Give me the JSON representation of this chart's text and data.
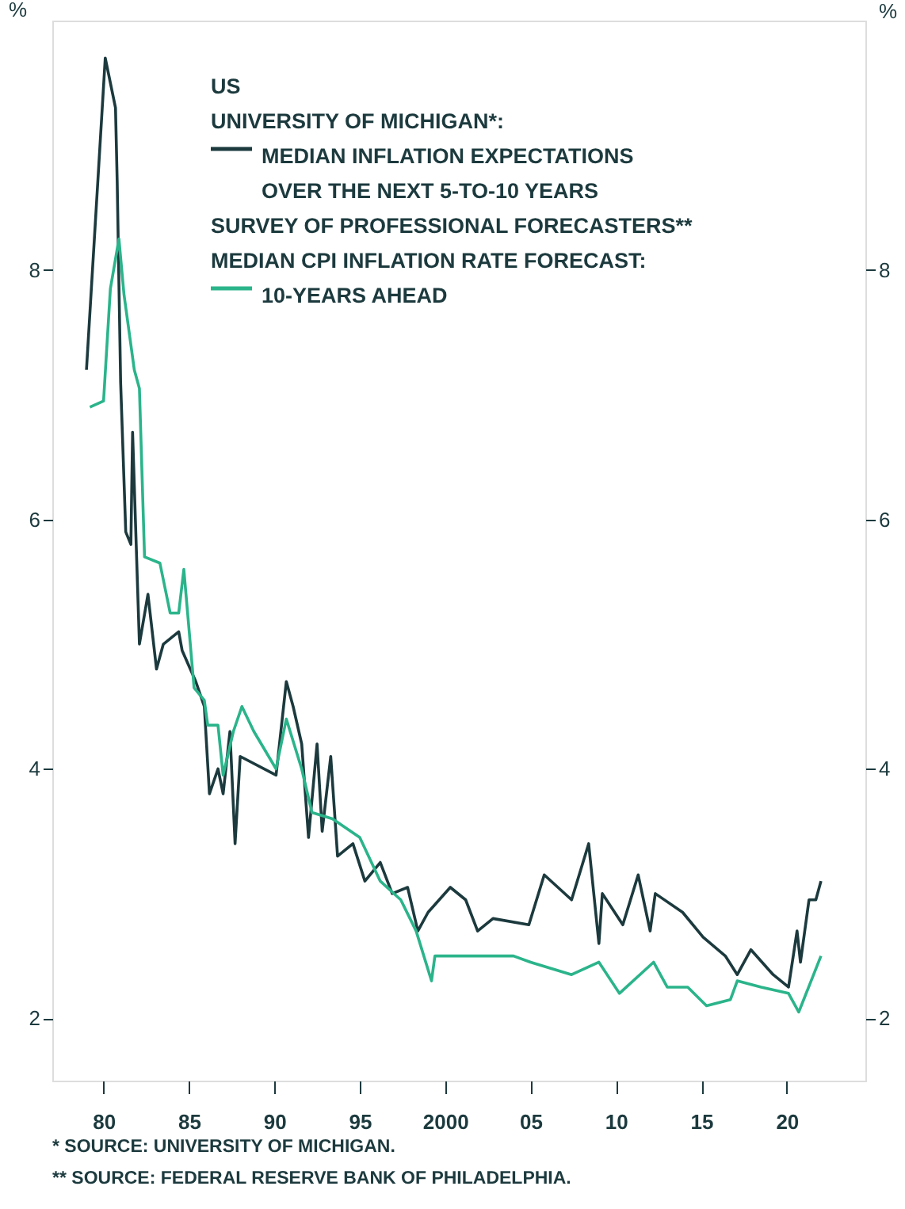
{
  "chart_data": {
    "type": "line",
    "legend_title": "US",
    "ylabel": "%",
    "y2label": "%",
    "xlim": [
      1977,
      2024.6
    ],
    "ylim": [
      1.5,
      10
    ],
    "y2lim": [
      1.5,
      10
    ],
    "yticks": [
      2,
      4,
      6,
      8
    ],
    "y2ticks": [
      2,
      4,
      6,
      8
    ],
    "xticks": [
      {
        "value": 1980,
        "label": "80"
      },
      {
        "value": 1985,
        "label": "85"
      },
      {
        "value": 1990,
        "label": "90"
      },
      {
        "value": 1995,
        "label": "95"
      },
      2000,
      {
        "value": 2005,
        "label": "05"
      },
      {
        "value": 2010,
        "label": "10"
      },
      {
        "value": 2015,
        "label": "15"
      },
      {
        "value": 2020,
        "label": "20"
      }
    ],
    "grid": false,
    "legend": "top",
    "line_style": "solid",
    "marker": "none",
    "annotations": [
      "UNIVERSITY OF MICHIGAN*:",
      "SURVEY OF PROFESSIONAL FORECASTERS**",
      "MEDIAN CPI INFLATION RATE FORECAST:",
      "* SOURCE: UNIVERSITY OF MICHIGAN.",
      "** SOURCE: FEDERAL RESERVE BANK OF PHILADELPHIA."
    ],
    "series": [
      {
        "name": "MEDIAN INFLATION EXPECTATIONS OVER THE NEXT 5-TO-10 YEARS",
        "color": "#1c3a3e",
        "x": [
          1979.0,
          1980.1,
          1980.7,
          1980.8,
          1981.0,
          1981.3,
          1981.6,
          1981.7,
          1982.1,
          1982.6,
          1983.1,
          1983.5,
          1984.4,
          1984.6,
          1985.4,
          1985.9,
          1986.2,
          1986.7,
          1987.0,
          1987.4,
          1987.7,
          1988.0,
          1990.1,
          1990.7,
          1991.1,
          1991.6,
          1992.0,
          1992.5,
          1992.8,
          1993.3,
          1993.7,
          1994.6,
          1995.3,
          1996.2,
          1996.9,
          1997.8,
          1998.4,
          1999.0,
          2000.3,
          2001.2,
          2001.9,
          2002.8,
          2004.9,
          2005.8,
          2007.4,
          2008.4,
          2009.0,
          2009.2,
          2010.4,
          2011.3,
          2012.0,
          2012.3,
          2013.9,
          2015.1,
          2016.4,
          2017.1,
          2017.9,
          2019.2,
          2020.1,
          2020.6,
          2020.8,
          2021.3,
          2021.7,
          2022.0
        ],
        "values": [
          7.2,
          9.7,
          9.3,
          8.7,
          7.1,
          5.9,
          5.8,
          6.7,
          5.0,
          5.4,
          4.8,
          5.0,
          5.1,
          4.95,
          4.7,
          4.5,
          3.8,
          4.0,
          3.8,
          4.3,
          3.4,
          4.1,
          3.95,
          4.7,
          4.5,
          4.2,
          3.45,
          4.2,
          3.5,
          4.1,
          3.3,
          3.4,
          3.1,
          3.25,
          3.0,
          3.05,
          2.7,
          2.85,
          3.05,
          2.95,
          2.7,
          2.8,
          2.75,
          3.15,
          2.95,
          3.4,
          2.6,
          3.0,
          2.75,
          3.15,
          2.7,
          3.0,
          2.85,
          2.65,
          2.5,
          2.35,
          2.55,
          2.35,
          2.25,
          2.7,
          2.45,
          2.95,
          2.95,
          3.1
        ]
      },
      {
        "name": "10-YEARS AHEAD",
        "color": "#2bb48a",
        "x": [
          1979.2,
          1980.0,
          1980.4,
          1980.9,
          1981.2,
          1981.8,
          1982.1,
          1982.4,
          1983.3,
          1983.9,
          1984.4,
          1984.7,
          1985.3,
          1985.9,
          1986.1,
          1986.7,
          1987.0,
          1987.6,
          1988.1,
          1988.8,
          1990.1,
          1990.7,
          1991.6,
          1992.2,
          1993.4,
          1995.0,
          1996.2,
          1997.4,
          1998.3,
          1999.2,
          1999.4,
          2004.0,
          2005.0,
          2007.4,
          2009.0,
          2010.2,
          2012.2,
          2013.0,
          2014.2,
          2015.3,
          2016.7,
          2017.1,
          2018.5,
          2020.1,
          2020.7,
          2022.0
        ],
        "values": [
          6.9,
          6.95,
          7.85,
          8.25,
          7.8,
          7.2,
          7.05,
          5.7,
          5.65,
          5.25,
          5.25,
          5.6,
          4.65,
          4.55,
          4.35,
          4.35,
          3.95,
          4.3,
          4.5,
          4.3,
          4.0,
          4.4,
          4.0,
          3.65,
          3.6,
          3.45,
          3.1,
          2.95,
          2.7,
          2.3,
          2.5,
          2.5,
          2.45,
          2.35,
          2.45,
          2.2,
          2.45,
          2.25,
          2.25,
          2.1,
          2.15,
          2.3,
          2.25,
          2.2,
          2.05,
          2.5
        ]
      }
    ]
  }
}
